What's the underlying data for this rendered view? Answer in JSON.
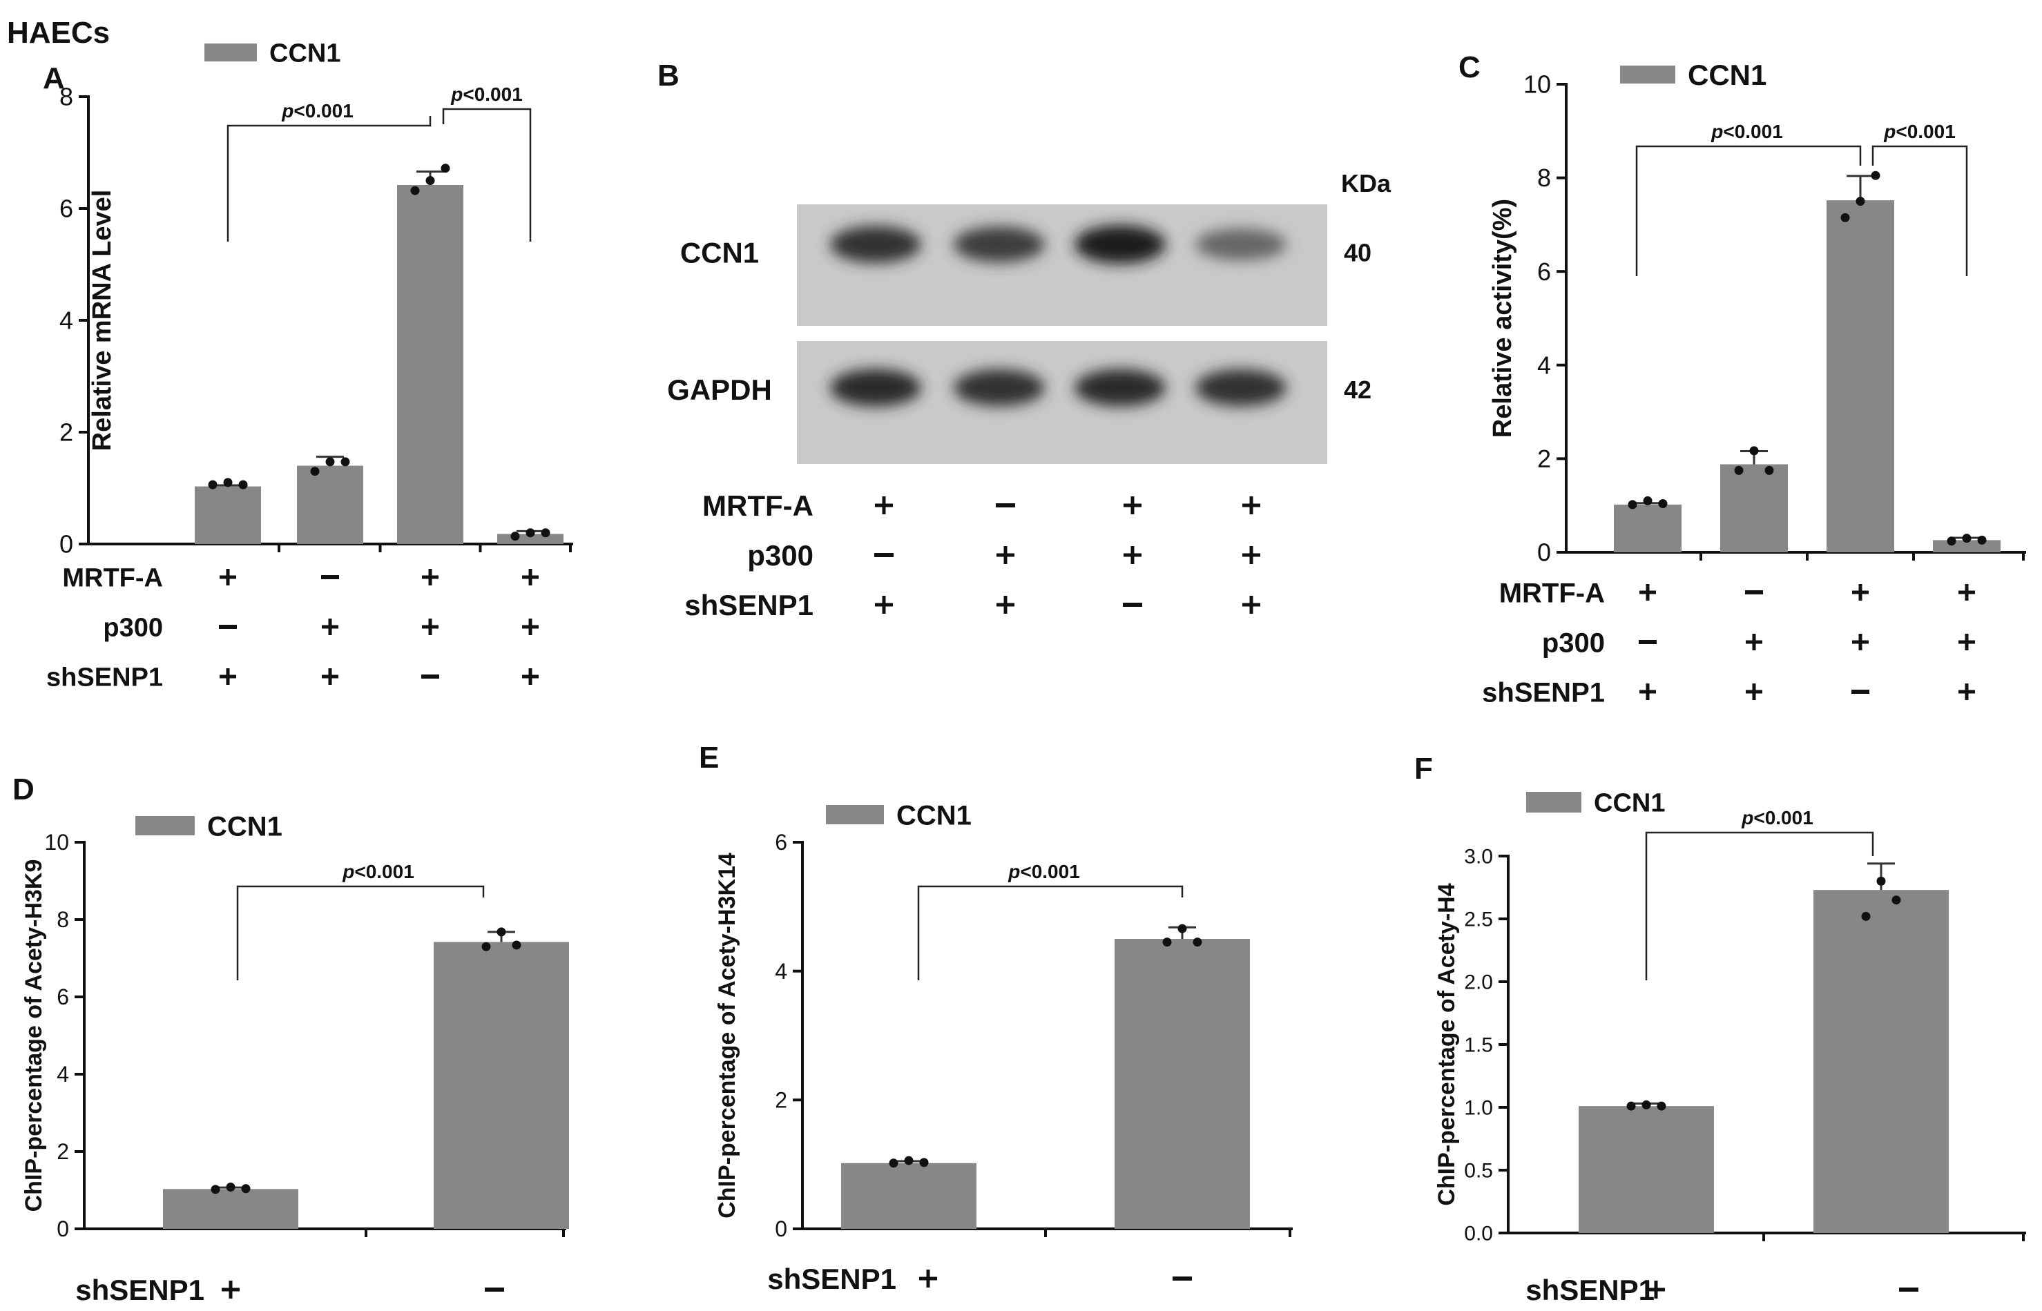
{
  "figure": {
    "cell_line": "HAECs",
    "bar_color": "#878787",
    "dot_color": "#111111"
  },
  "chart_data": [
    {
      "panel": "A",
      "type": "bar",
      "ylabel": "Relative mRNA  Level",
      "ylim": [
        0,
        8
      ],
      "yticks": [
        "0",
        "2",
        "4",
        "6",
        "8"
      ],
      "legend": "CCN1",
      "categories": [
        "1",
        "2",
        "3",
        "4"
      ],
      "values": [
        1.03,
        1.4,
        6.42,
        0.18
      ],
      "error": [
        0.02,
        0.16,
        0.24,
        0.05
      ],
      "points": [
        [
          1.06,
          1.1,
          1.06
        ],
        [
          1.3,
          1.47,
          1.47
        ],
        [
          6.32,
          6.5,
          6.72
        ],
        [
          0.14,
          0.2,
          0.2
        ]
      ],
      "conditions": [
        {
          "name": "MRTF-A",
          "signs": [
            "+",
            "−",
            "+",
            "+"
          ]
        },
        {
          "name": "p300",
          "signs": [
            "−",
            "+",
            "+",
            "+"
          ]
        },
        {
          "name": "shSENP1",
          "signs": [
            "+",
            "+",
            "−",
            "+"
          ]
        }
      ],
      "comparisons": [
        {
          "from": 0,
          "to": 2,
          "label": "p<0.001"
        },
        {
          "from": 2,
          "to": 3,
          "label": "p<0.001"
        }
      ]
    },
    {
      "panel": "C",
      "type": "bar",
      "ylabel": "Relative activity(%)",
      "ylim": [
        0,
        10
      ],
      "yticks": [
        "0",
        "2",
        "4",
        "6",
        "8",
        "10"
      ],
      "legend": "CCN1",
      "categories": [
        "1",
        "2",
        "3",
        "4"
      ],
      "values": [
        1.02,
        1.88,
        7.52,
        0.26
      ],
      "error": [
        0.03,
        0.28,
        0.52,
        0.05
      ],
      "points": [
        [
          1.02,
          1.1,
          1.04
        ],
        [
          1.75,
          2.17,
          1.75
        ],
        [
          7.15,
          7.5,
          8.05
        ],
        [
          0.24,
          0.3,
          0.26
        ]
      ],
      "conditions": [
        {
          "name": "MRTF-A",
          "signs": [
            "+",
            "−",
            "+",
            "+"
          ]
        },
        {
          "name": "p300",
          "signs": [
            "−",
            "+",
            "+",
            "+"
          ]
        },
        {
          "name": "shSENP1",
          "signs": [
            "+",
            "+",
            "−",
            "+"
          ]
        }
      ],
      "comparisons": [
        {
          "from": 0,
          "to": 2,
          "label": "p<0.001"
        },
        {
          "from": 2,
          "to": 3,
          "label": "p<0.001"
        }
      ]
    },
    {
      "panel": "D",
      "type": "bar",
      "ylabel": "ChIP-percentage of Acety-H3K9",
      "ylim": [
        0,
        10
      ],
      "yticks": [
        "0",
        "2",
        "4",
        "6",
        "8",
        "10"
      ],
      "legend": "CCN1",
      "categories": [
        "1",
        "2"
      ],
      "values": [
        1.03,
        7.42
      ],
      "error": [
        0.04,
        0.26
      ],
      "points": [
        [
          1.02,
          1.08,
          1.04
        ],
        [
          7.3,
          7.68,
          7.34
        ]
      ],
      "conditions": [
        {
          "name": "shSENP1",
          "signs": [
            "+",
            "−"
          ]
        }
      ],
      "comparisons": [
        {
          "from": 0,
          "to": 1,
          "label": "p<0.001"
        }
      ]
    },
    {
      "panel": "E",
      "type": "bar",
      "ylabel": "ChIP-percentage of Acety-H3K14",
      "ylim": [
        0,
        6
      ],
      "yticks": [
        "0",
        "2",
        "4",
        "6"
      ],
      "legend": "CCN1",
      "categories": [
        "1",
        "2"
      ],
      "values": [
        1.02,
        4.5
      ],
      "error": [
        0.03,
        0.18
      ],
      "points": [
        [
          1.02,
          1.06,
          1.03
        ],
        [
          4.45,
          4.66,
          4.45
        ]
      ],
      "conditions": [
        {
          "name": "shSENP1",
          "signs": [
            "+",
            "−"
          ]
        }
      ],
      "comparisons": [
        {
          "from": 0,
          "to": 1,
          "label": "p<0.001"
        }
      ]
    },
    {
      "panel": "F",
      "type": "bar",
      "ylabel": "ChIP-percentage of Acety-H4",
      "ylim": [
        0,
        3
      ],
      "yticks": [
        "0.0",
        "0.5",
        "1.0",
        "1.5",
        "2.0",
        "2.5",
        "3.0"
      ],
      "legend": "CCN1",
      "categories": [
        "1",
        "2"
      ],
      "values": [
        1.01,
        2.73
      ],
      "error": [
        0.02,
        0.21
      ],
      "points": [
        [
          1.01,
          1.02,
          1.01
        ],
        [
          2.52,
          2.8,
          2.65
        ]
      ],
      "conditions": [
        {
          "name": "shSENP1",
          "signs": [
            "+",
            "−"
          ]
        }
      ],
      "comparisons": [
        {
          "from": 0,
          "to": 1,
          "label": "p<0.001"
        }
      ]
    }
  ],
  "blot": {
    "panel": "B",
    "unit": "KDa",
    "bands": [
      {
        "protein": "CCN1",
        "kda": "40",
        "intensity": [
          0.85,
          0.75,
          1.0,
          0.4
        ]
      },
      {
        "protein": "GAPDH",
        "kda": "42",
        "intensity": [
          0.9,
          0.85,
          0.88,
          0.85
        ]
      }
    ],
    "conditions": [
      {
        "name": "MRTF-A",
        "signs": [
          "+",
          "−",
          "+",
          "+"
        ]
      },
      {
        "name": "p300",
        "signs": [
          "−",
          "+",
          "+",
          "+"
        ]
      },
      {
        "name": "shSENP1",
        "signs": [
          "+",
          "+",
          "−",
          "+"
        ]
      }
    ]
  }
}
